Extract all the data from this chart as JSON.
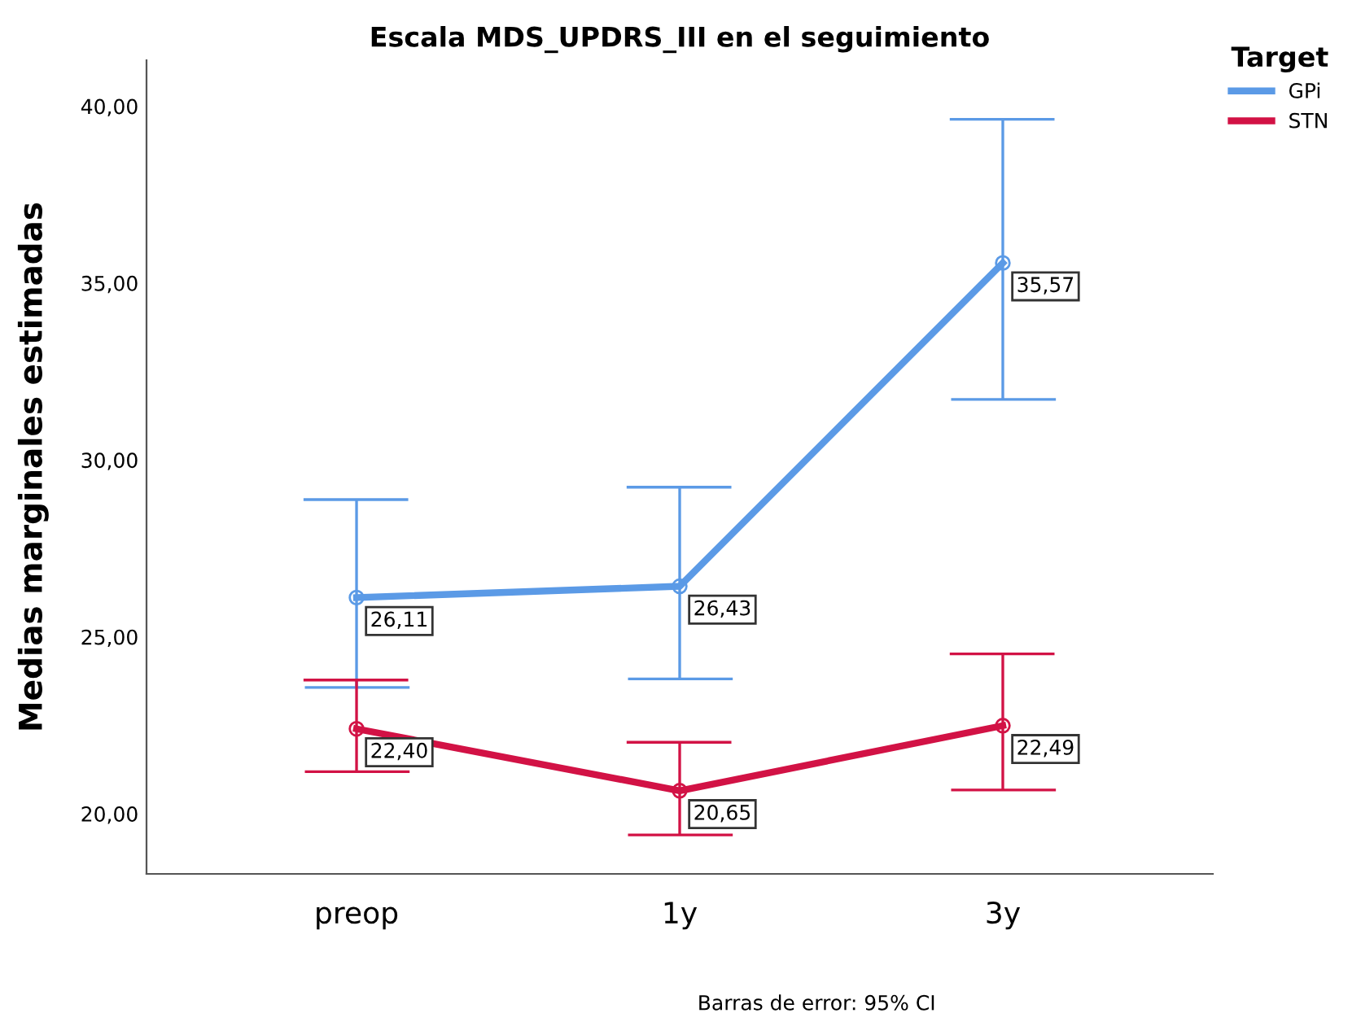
{
  "chart_data": {
    "type": "line",
    "title": "Escala MDS_UPDRS_III en el seguimiento",
    "ylabel": "Medias marginales estimadas",
    "legend_title": "Target",
    "annotations": [
      "Barras de error: 95% CI"
    ],
    "categories": [
      "preop",
      "1y",
      "3y"
    ],
    "series": [
      {
        "name": "GPi",
        "color": "#5b9ae6",
        "values": [
          26.11,
          26.43,
          35.57
        ],
        "value_labels": [
          "26,11",
          "26,43",
          "35,57"
        ],
        "errors": [
          [
            23.57,
            28.88
          ],
          [
            23.81,
            29.23
          ],
          [
            31.71,
            39.63
          ]
        ]
      },
      {
        "name": "STN",
        "color": "#d21245",
        "values": [
          22.4,
          20.65,
          22.49
        ],
        "value_labels": [
          "22,40",
          "20,65",
          "22,49"
        ],
        "errors": [
          [
            21.19,
            23.78
          ],
          [
            19.4,
            22.02
          ],
          [
            20.67,
            24.52
          ]
        ]
      }
    ],
    "ylim": [
      18.3,
      41.3
    ],
    "yticks": [
      {
        "value": 20,
        "label": "20,00"
      },
      {
        "value": 25,
        "label": "25,00"
      },
      {
        "value": 30,
        "label": "30,00"
      },
      {
        "value": 35,
        "label": "35,00"
      },
      {
        "value": 40,
        "label": "40,00"
      }
    ],
    "grid": false,
    "legend": "top right",
    "marker": "circle",
    "line_style": "solid"
  }
}
